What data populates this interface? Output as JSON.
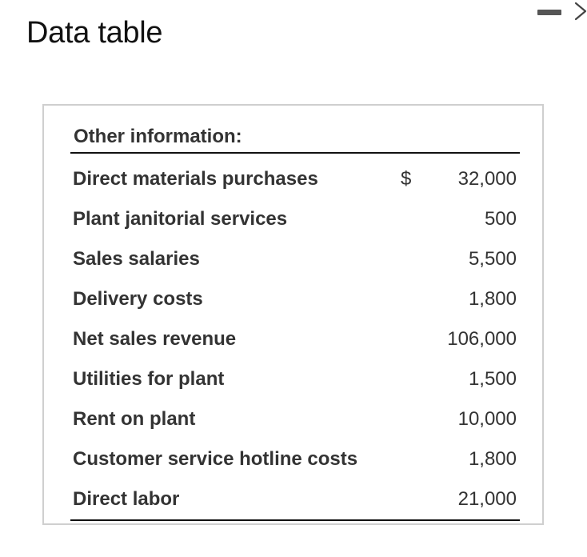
{
  "window": {
    "title": "Data table",
    "controls": [
      {
        "icon": "minimize-icon"
      },
      {
        "icon": "chevron-right-icon"
      }
    ]
  },
  "table": {
    "section_heading": "Other information:",
    "rows": [
      {
        "label": "Direct materials purchases",
        "currency": "$",
        "amount": "32,000"
      },
      {
        "label": "Plant janitorial services",
        "currency": "",
        "amount": "500"
      },
      {
        "label": "Sales salaries",
        "currency": "",
        "amount": "5,500"
      },
      {
        "label": "Delivery costs",
        "currency": "",
        "amount": "1,800"
      },
      {
        "label": "Net sales revenue",
        "currency": "",
        "amount": "106,000"
      },
      {
        "label": "Utilities for plant",
        "currency": "",
        "amount": "1,500"
      },
      {
        "label": "Rent on plant",
        "currency": "",
        "amount": "10,000"
      },
      {
        "label": "Customer service hotline costs",
        "currency": "",
        "amount": "1,800"
      },
      {
        "label": "Direct labor",
        "currency": "",
        "amount": "21,000"
      }
    ]
  }
}
